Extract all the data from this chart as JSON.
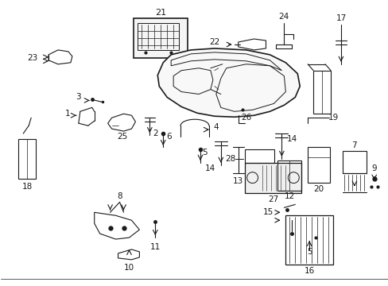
{
  "background_color": "#ffffff",
  "fig_width": 4.89,
  "fig_height": 3.6,
  "dpi": 100,
  "col": "#1a1a1a",
  "lw": 0.8
}
